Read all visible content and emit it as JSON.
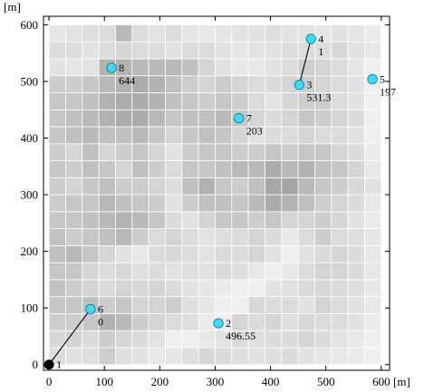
{
  "chart_data": {
    "type": "scatter",
    "x_unit": "[m]",
    "y_unit": "[m]",
    "x_ticks": [
      0,
      100,
      200,
      300,
      400,
      500,
      600
    ],
    "y_ticks": [
      0,
      100,
      200,
      300,
      400,
      500,
      600
    ],
    "xlim": [
      -10,
      615
    ],
    "ylim": [
      -10,
      615
    ],
    "background_heatmap": {
      "cell_size": 30,
      "origin": [
        0,
        0
      ],
      "cols": 20,
      "rows": 20,
      "shade_legend": "0 = white, 1 = darkest gray",
      "values": [
        [
          0.18,
          0.15,
          0.18,
          0.3,
          0.18,
          0.15,
          0.1,
          0.12,
          0.18,
          0.22,
          0.2,
          0.18,
          0.15,
          0.18,
          0.2,
          0.15,
          0.12,
          0.1,
          0.08,
          0.05
        ],
        [
          0.22,
          0.25,
          0.2,
          0.3,
          0.25,
          0.2,
          0.15,
          0.05,
          0.05,
          0.1,
          0.15,
          0.2,
          0.18,
          0.2,
          0.2,
          0.25,
          0.2,
          0.15,
          0.1,
          0.05
        ],
        [
          0.3,
          0.3,
          0.35,
          0.5,
          0.45,
          0.3,
          0.25,
          0.2,
          0.18,
          0.08,
          0.05,
          0.25,
          0.2,
          0.25,
          0.18,
          0.22,
          0.2,
          0.2,
          0.15,
          0.08
        ],
        [
          0.35,
          0.35,
          0.4,
          0.3,
          0.35,
          0.25,
          0.25,
          0.3,
          0.18,
          0.12,
          0.05,
          0.05,
          0.22,
          0.2,
          0.2,
          0.15,
          0.25,
          0.2,
          0.15,
          0.1
        ],
        [
          0.4,
          0.3,
          0.25,
          0.2,
          0.25,
          0.22,
          0.25,
          0.2,
          0.15,
          0.12,
          0.08,
          0.05,
          0.05,
          0.15,
          0.15,
          0.2,
          0.22,
          0.2,
          0.18,
          0.1
        ],
        [
          0.35,
          0.35,
          0.25,
          0.2,
          0.22,
          0.18,
          0.2,
          0.15,
          0.18,
          0.15,
          0.2,
          0.18,
          0.1,
          0.05,
          0.1,
          0.2,
          0.25,
          0.25,
          0.2,
          0.1
        ],
        [
          0.4,
          0.45,
          0.35,
          0.25,
          0.15,
          0.1,
          0.2,
          0.22,
          0.2,
          0.15,
          0.2,
          0.2,
          0.25,
          0.15,
          0.05,
          0.15,
          0.2,
          0.25,
          0.2,
          0.1
        ],
        [
          0.38,
          0.3,
          0.35,
          0.4,
          0.45,
          0.3,
          0.2,
          0.25,
          0.2,
          0.15,
          0.18,
          0.2,
          0.25,
          0.2,
          0.1,
          0.2,
          0.3,
          0.2,
          0.18,
          0.12
        ],
        [
          0.35,
          0.35,
          0.4,
          0.45,
          0.5,
          0.45,
          0.35,
          0.2,
          0.15,
          0.25,
          0.35,
          0.35,
          0.3,
          0.35,
          0.25,
          0.25,
          0.3,
          0.25,
          0.15,
          0.08
        ],
        [
          0.3,
          0.35,
          0.35,
          0.45,
          0.4,
          0.35,
          0.3,
          0.15,
          0.3,
          0.4,
          0.4,
          0.35,
          0.45,
          0.55,
          0.5,
          0.4,
          0.3,
          0.25,
          0.2,
          0.1
        ],
        [
          0.3,
          0.25,
          0.35,
          0.4,
          0.3,
          0.3,
          0.25,
          0.2,
          0.4,
          0.5,
          0.35,
          0.3,
          0.4,
          0.58,
          0.6,
          0.45,
          0.35,
          0.3,
          0.22,
          0.15
        ],
        [
          0.35,
          0.3,
          0.4,
          0.35,
          0.25,
          0.4,
          0.3,
          0.2,
          0.35,
          0.35,
          0.4,
          0.45,
          0.45,
          0.55,
          0.45,
          0.5,
          0.4,
          0.35,
          0.25,
          0.1
        ],
        [
          0.3,
          0.25,
          0.4,
          0.25,
          0.3,
          0.35,
          0.25,
          0.15,
          0.3,
          0.35,
          0.35,
          0.3,
          0.3,
          0.35,
          0.3,
          0.35,
          0.35,
          0.25,
          0.2,
          0.08
        ],
        [
          0.35,
          0.4,
          0.45,
          0.4,
          0.4,
          0.45,
          0.35,
          0.25,
          0.35,
          0.4,
          0.35,
          0.25,
          0.15,
          0.2,
          0.2,
          0.25,
          0.2,
          0.2,
          0.15,
          0.05
        ],
        [
          0.35,
          0.4,
          0.45,
          0.5,
          0.55,
          0.55,
          0.45,
          0.35,
          0.4,
          0.4,
          0.45,
          0.35,
          0.25,
          0.2,
          0.25,
          0.35,
          0.3,
          0.25,
          0.2,
          0.05
        ],
        [
          0.35,
          0.35,
          0.4,
          0.5,
          0.55,
          0.55,
          0.5,
          0.4,
          0.35,
          0.3,
          0.35,
          0.3,
          0.2,
          0.15,
          0.25,
          0.3,
          0.3,
          0.2,
          0.15,
          0.05
        ],
        [
          0.3,
          0.3,
          0.35,
          0.45,
          0.5,
          0.55,
          0.5,
          0.4,
          0.3,
          0.25,
          0.3,
          0.25,
          0.2,
          0.2,
          0.25,
          0.3,
          0.25,
          0.2,
          0.15,
          0.05
        ],
        [
          0.15,
          0.12,
          0.15,
          0.5,
          0.5,
          0.45,
          0.45,
          0.45,
          0.4,
          0.25,
          0.15,
          0.1,
          0.1,
          0.15,
          0.2,
          0.3,
          0.25,
          0.2,
          0.12,
          0.05
        ],
        [
          0.2,
          0.2,
          0.15,
          0.2,
          0.25,
          0.2,
          0.2,
          0.15,
          0.2,
          0.2,
          0.15,
          0.12,
          0.15,
          0.15,
          0.2,
          0.2,
          0.18,
          0.22,
          0.15,
          0.1
        ],
        [
          0.12,
          0.15,
          0.18,
          0.2,
          0.45,
          0.2,
          0.15,
          0.2,
          0.12,
          0.1,
          0.12,
          0.15,
          0.15,
          0.18,
          0.15,
          0.15,
          0.12,
          0.15,
          0.12,
          0.08
        ]
      ]
    },
    "points": [
      {
        "id": "1",
        "x": 0,
        "y": 0,
        "label": "",
        "marker": "black"
      },
      {
        "id": "2",
        "x": 306,
        "y": 73,
        "label": "496.55",
        "marker": "cyan"
      },
      {
        "id": "3",
        "x": 452,
        "y": 494,
        "label": "531.3",
        "marker": "cyan"
      },
      {
        "id": "4",
        "x": 473,
        "y": 575,
        "label": "1",
        "marker": "cyan"
      },
      {
        "id": "5",
        "x": 584,
        "y": 504,
        "label": "197",
        "marker": "cyan"
      },
      {
        "id": "6",
        "x": 75,
        "y": 98,
        "label": "0",
        "marker": "cyan"
      },
      {
        "id": "7",
        "x": 343,
        "y": 435,
        "label": "203",
        "marker": "cyan"
      },
      {
        "id": "8",
        "x": 113,
        "y": 524,
        "label": "644",
        "marker": "cyan"
      }
    ],
    "links": [
      {
        "from": "1",
        "to": "6"
      },
      {
        "from": "3",
        "to": "4"
      }
    ],
    "colors": {
      "marker_fill": "#33e0ff",
      "marker_edge": "#1a6a88",
      "origin_marker": "#000000",
      "heat_light": "#f6f6f6",
      "heat_dark": "#6e6e6e"
    }
  }
}
